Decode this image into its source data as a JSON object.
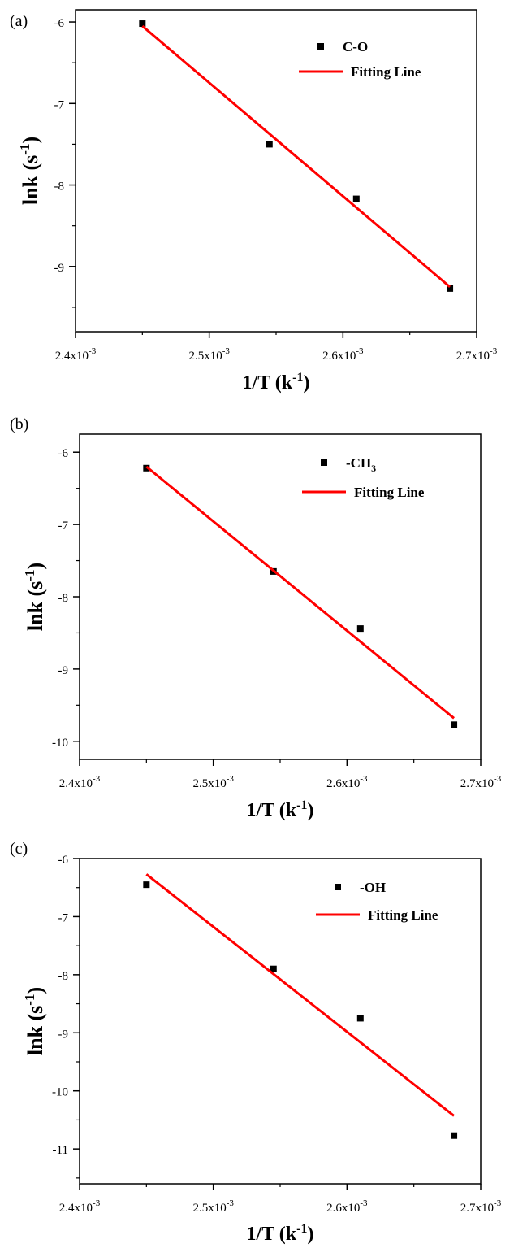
{
  "chart_data": [
    {
      "type": "scatter",
      "panel_label": "(a)",
      "xlabel": {
        "main": "1/T (k",
        "sup": "-1",
        "close": ")"
      },
      "ylabel": {
        "main": "lnk (s",
        "sup": "-1",
        "close": ")"
      },
      "xlim": [
        0.0024,
        0.0027
      ],
      "ylim": [
        -9.8,
        -5.85
      ],
      "x_ticks": [
        {
          "value": 0.0024,
          "base": "2.4x10",
          "exp": "-3"
        },
        {
          "value": 0.0025,
          "base": "2.5x10",
          "exp": "-3"
        },
        {
          "value": 0.0026,
          "base": "2.6x10",
          "exp": "-3"
        },
        {
          "value": 0.0027,
          "base": "2.7x10",
          "exp": "-3"
        }
      ],
      "y_ticks": [
        -6,
        -7,
        -8,
        -9
      ],
      "legend_position": "top-right",
      "series": [
        {
          "name": {
            "main": "C-O",
            "sub": ""
          },
          "marker": "square",
          "color": "#000000",
          "x": [
            0.00245,
            0.002545,
            0.00261,
            0.00268
          ],
          "y": [
            -6.02,
            -7.5,
            -8.17,
            -9.27
          ]
        },
        {
          "name": {
            "main": "Fitting Line",
            "sub": ""
          },
          "line": true,
          "color": "#ff0000",
          "x": [
            0.00245,
            0.00268
          ],
          "y": [
            -6.05,
            -9.25
          ]
        }
      ]
    },
    {
      "type": "scatter",
      "panel_label": "(b)",
      "xlabel": {
        "main": "1/T (k",
        "sup": "-1",
        "close": ")"
      },
      "ylabel": {
        "main": "lnk (s",
        "sup": "-1",
        "close": ")"
      },
      "xlim": [
        0.0024,
        0.0027
      ],
      "ylim": [
        -10.25,
        -5.75
      ],
      "x_ticks": [
        {
          "value": 0.0024,
          "base": "2.4x10",
          "exp": "-3"
        },
        {
          "value": 0.0025,
          "base": "2.5x10",
          "exp": "-3"
        },
        {
          "value": 0.0026,
          "base": "2.6x10",
          "exp": "-3"
        },
        {
          "value": 0.0027,
          "base": "2.7x10",
          "exp": "-3"
        }
      ],
      "y_ticks": [
        -6,
        -7,
        -8,
        -9,
        -10
      ],
      "legend_position": "top-right",
      "series": [
        {
          "name": {
            "main": "-CH",
            "sub": "3"
          },
          "marker": "square",
          "color": "#000000",
          "x": [
            0.00245,
            0.002545,
            0.00261,
            0.00268
          ],
          "y": [
            -6.22,
            -7.65,
            -8.44,
            -9.77
          ]
        },
        {
          "name": {
            "main": "Fitting Line",
            "sub": ""
          },
          "line": true,
          "color": "#ff0000",
          "x": [
            0.00245,
            0.00268
          ],
          "y": [
            -6.2,
            -9.68
          ]
        }
      ]
    },
    {
      "type": "scatter",
      "panel_label": "(c)",
      "xlabel": {
        "main": "1/T (k",
        "sup": "-1",
        "close": ")"
      },
      "ylabel": {
        "main": "lnk (s",
        "sup": "-1",
        "close": ")"
      },
      "xlim": [
        0.0024,
        0.0027
      ],
      "ylim": [
        -11.6,
        -6.0
      ],
      "x_ticks": [
        {
          "value": 0.0024,
          "base": "2.4x10",
          "exp": "-3"
        },
        {
          "value": 0.0025,
          "base": "2.5x10",
          "exp": "-3"
        },
        {
          "value": 0.0026,
          "base": "2.6x10",
          "exp": "-3"
        },
        {
          "value": 0.0027,
          "base": "2.7x10",
          "exp": "-3"
        }
      ],
      "y_ticks": [
        -6,
        -7,
        -8,
        -9,
        -10,
        -11
      ],
      "legend_position": "top-right",
      "series": [
        {
          "name": {
            "main": "-OH",
            "sub": ""
          },
          "marker": "square",
          "color": "#000000",
          "x": [
            0.00245,
            0.002545,
            0.00261,
            0.00268
          ],
          "y": [
            -6.45,
            -7.9,
            -8.75,
            -10.77
          ]
        },
        {
          "name": {
            "main": "Fitting Line",
            "sub": ""
          },
          "line": true,
          "color": "#ff0000",
          "x": [
            0.00245,
            0.00268
          ],
          "y": [
            -6.27,
            -10.43
          ]
        }
      ]
    }
  ]
}
